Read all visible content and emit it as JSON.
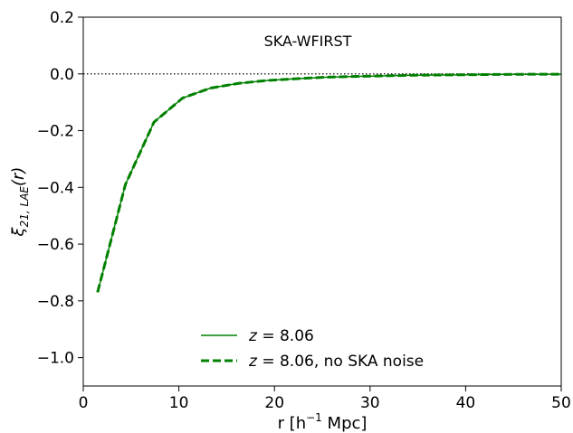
{
  "chart_data": {
    "type": "line",
    "annotation": "SKA-WFIRST",
    "xlabel": {
      "main": "r [h",
      "sup": "−1",
      "tail": " Mpc]"
    },
    "ylabel": {
      "sym": "ξ",
      "sub": "21, LAE",
      "tail": "(r)"
    },
    "xlim": [
      0,
      50
    ],
    "ylim": [
      -1.1,
      0.2
    ],
    "xticks": [
      0,
      10,
      20,
      30,
      40,
      50
    ],
    "xtick_labels": [
      "0",
      "10",
      "20",
      "30",
      "40",
      "50"
    ],
    "yticks": [
      0.2,
      0.0,
      -0.2,
      -0.4,
      -0.6,
      -0.8,
      -1.0
    ],
    "ytick_labels": [
      "0.2",
      "0.0",
      "−0.2",
      "−0.4",
      "−0.6",
      "−0.8",
      "−1.0"
    ],
    "reference_line": {
      "y": 0.0,
      "style": "dotted"
    },
    "grid": false,
    "legend_position": "lower-center",
    "series": [
      {
        "name": "z = 8.06",
        "legend": {
          "z": "z",
          "rest": " = 8.06"
        },
        "style": "solid",
        "color": "#008000",
        "x": [
          1.5,
          4.4,
          7.4,
          10.4,
          13.3,
          16.3,
          19.3,
          22.2,
          25.2,
          28.2,
          31.1,
          34.1,
          37.1,
          40.0,
          43.0,
          46.0,
          49.0,
          50.0
        ],
        "y": [
          -0.77,
          -0.39,
          -0.17,
          -0.085,
          -0.05,
          -0.033,
          -0.023,
          -0.017,
          -0.012,
          -0.009,
          -0.007,
          -0.005,
          -0.004,
          -0.003,
          -0.002,
          -0.0015,
          -0.001,
          -0.001
        ]
      },
      {
        "name": "z = 8.06, no SKA noise",
        "legend": {
          "z": "z",
          "rest": " = 8.06, no SKA noise"
        },
        "style": "dashed",
        "color": "#008000",
        "x": [
          1.5,
          4.4,
          7.4,
          10.4,
          13.3,
          16.3,
          19.3,
          22.2,
          25.2,
          28.2,
          31.1,
          34.1,
          37.1,
          40.0,
          43.0,
          46.0,
          49.0,
          50.0
        ],
        "y": [
          -0.77,
          -0.39,
          -0.17,
          -0.085,
          -0.05,
          -0.033,
          -0.023,
          -0.017,
          -0.012,
          -0.009,
          -0.007,
          -0.005,
          -0.004,
          -0.003,
          -0.002,
          -0.0015,
          -0.001,
          -0.001
        ]
      }
    ]
  }
}
